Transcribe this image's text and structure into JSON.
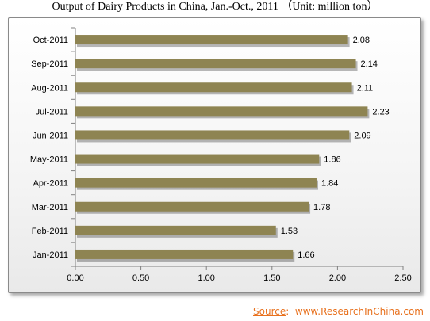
{
  "title": "Output of Dairy Products in China, Jan.-Oct., 2011 （Unit: million ton）",
  "source": {
    "label": "Source",
    "separator": ":",
    "url": "www.ResearchInChina.com"
  },
  "colors": {
    "bar": "#8e8452",
    "source": "#e8711e",
    "axis": "#808080"
  },
  "chart_data": {
    "type": "bar",
    "orientation": "horizontal",
    "categories": [
      "Oct-2011",
      "Sep-2011",
      "Aug-2011",
      "Jul-2011",
      "Jun-2011",
      "May-2011",
      "Apr-2011",
      "Mar-2011",
      "Feb-2011",
      "Jan-2011"
    ],
    "values": [
      2.08,
      2.14,
      2.11,
      2.23,
      2.09,
      1.86,
      1.84,
      1.78,
      1.53,
      1.66
    ],
    "value_labels": [
      "2.08",
      "2.14",
      "2.11",
      "2.23",
      "2.09",
      "1.86",
      "1.84",
      "1.78",
      "1.53",
      "1.66"
    ],
    "x_ticks": [
      "0.00",
      "0.50",
      "1.00",
      "1.50",
      "2.00",
      "2.50"
    ],
    "x_tick_values": [
      0,
      0.5,
      1.0,
      1.5,
      2.0,
      2.5
    ],
    "xlim": [
      0,
      2.5
    ],
    "grid": false,
    "legend": "none"
  }
}
